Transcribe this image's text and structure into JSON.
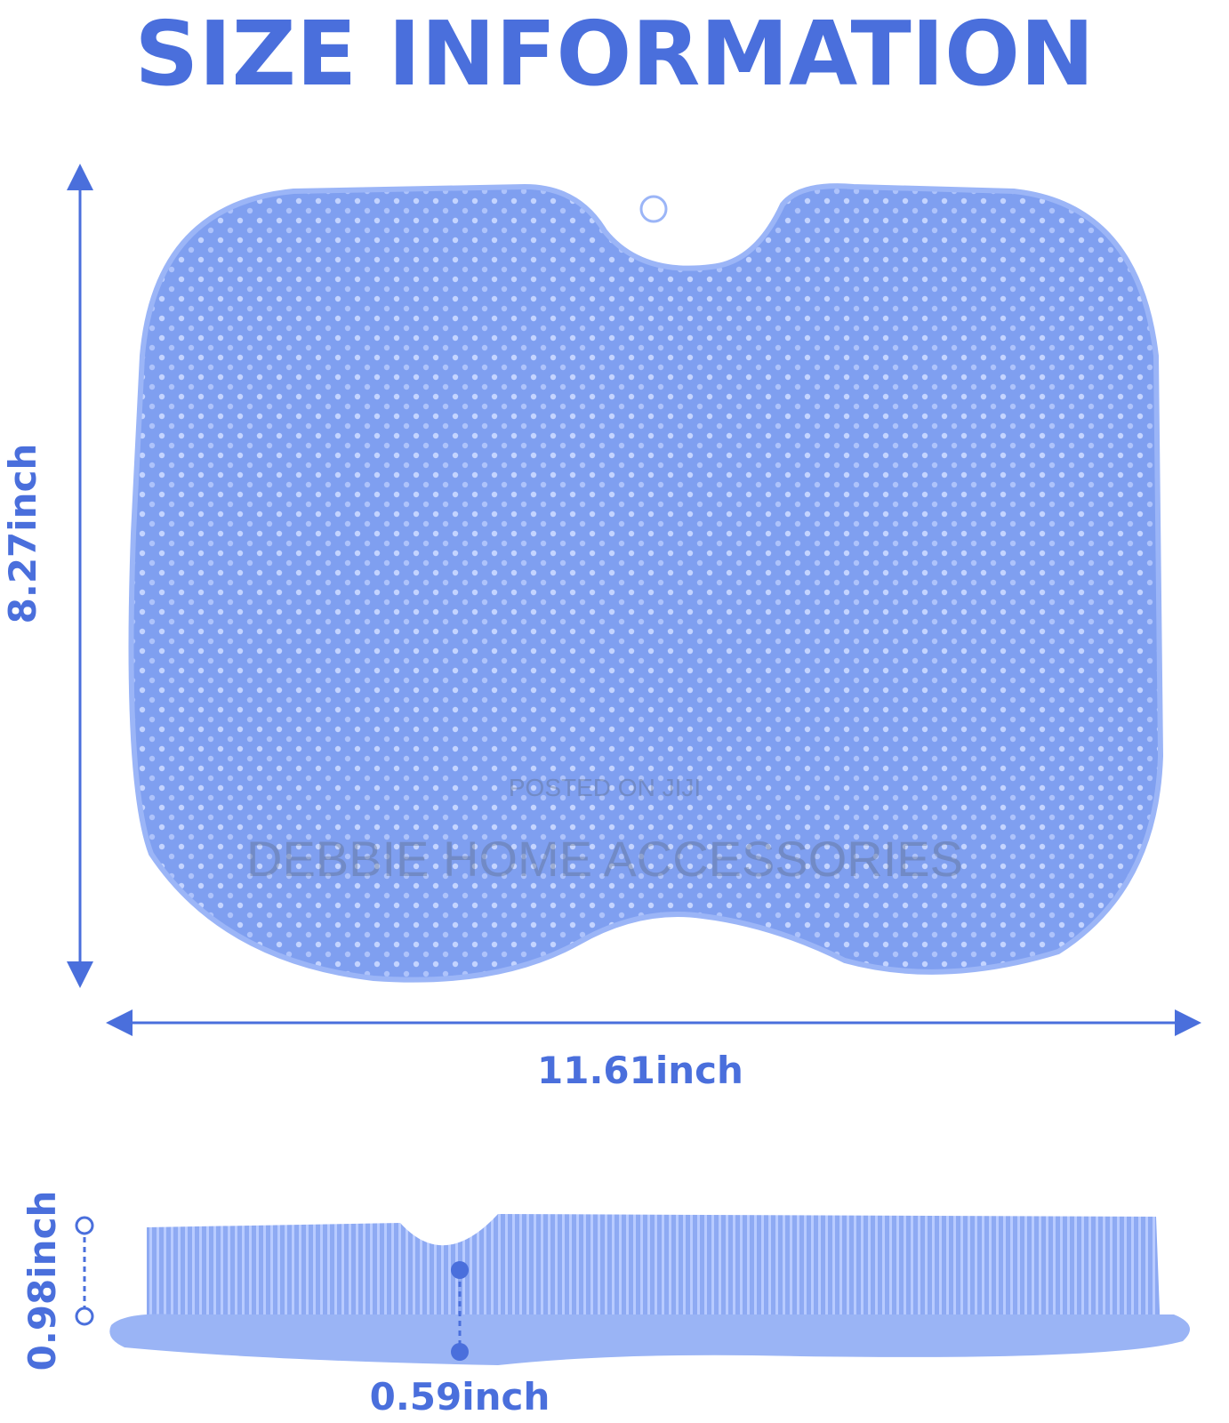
{
  "header": {
    "title": "SIZE INFORMATION"
  },
  "dimensions": {
    "height": "8.27inch",
    "width": "11.61inch",
    "total_thickness": "0.98inch",
    "base_thickness": "0.59inch"
  },
  "watermark": {
    "top": "POSTED ON JIJI",
    "bottom": "DEBBIE HOME ACCESSORIES"
  }
}
